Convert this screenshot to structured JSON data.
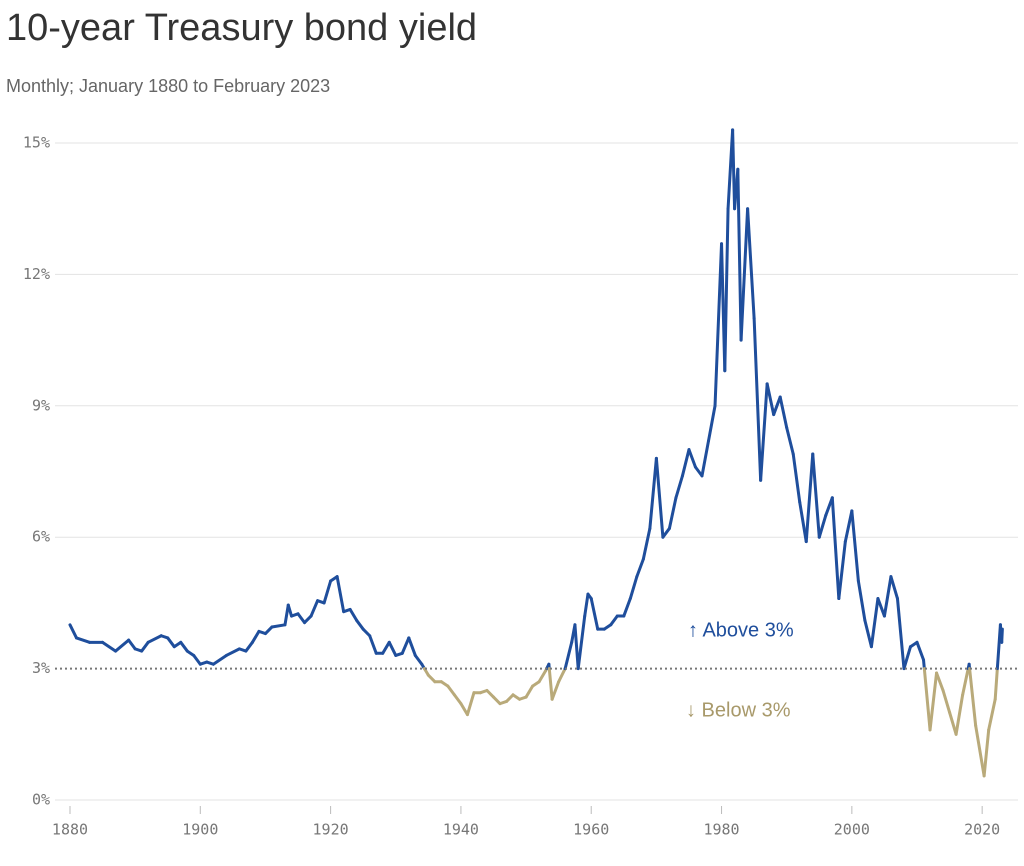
{
  "chart_data": {
    "type": "line",
    "title": "10-year Treasury bond yield",
    "subtitle": "Monthly; January 1880 to February 2023",
    "annotations": [
      "↑ Above 3%",
      "↓ Below 3%"
    ],
    "threshold": 3,
    "color": "#1f4e9c",
    "below_color": "#b9aa7a",
    "grid": true,
    "xlim": [
      1877.7,
      2025.5
    ],
    "ylim": [
      0,
      15
    ],
    "xticks": [
      1880,
      1900,
      1920,
      1940,
      1960,
      1980,
      2000,
      2020
    ],
    "yticks": [
      {
        "value": 0,
        "label": "0%"
      },
      {
        "value": 3,
        "label": "3%"
      },
      {
        "value": 6,
        "label": "6%"
      },
      {
        "value": 9,
        "label": "9%"
      },
      {
        "value": 12,
        "label": "12%"
      },
      {
        "value": 15,
        "label": "15%"
      }
    ],
    "x": [
      1880,
      1881,
      1883,
      1885,
      1887,
      1889,
      1890,
      1891,
      1892,
      1894,
      1895,
      1896,
      1897,
      1898,
      1899,
      1900,
      1901,
      1902,
      1904,
      1906,
      1907,
      1908,
      1909,
      1910,
      1911,
      1913,
      1913.5,
      1914,
      1915,
      1916,
      1917,
      1918,
      1919,
      1920,
      1921,
      1922,
      1923,
      1924,
      1925,
      1926,
      1927,
      1928,
      1929,
      1930,
      1931,
      1932,
      1933,
      1934,
      1935,
      1936,
      1937,
      1938,
      1939,
      1940,
      1941,
      1942,
      1943,
      1944,
      1945,
      1946,
      1947,
      1948,
      1949,
      1950,
      1951,
      1952,
      1953,
      1953.5,
      1954,
      1955,
      1956,
      1957,
      1957.5,
      1958,
      1959,
      1959.5,
      1960,
      1961,
      1962,
      1963,
      1964,
      1965,
      1966,
      1967,
      1968,
      1969,
      1970,
      1971,
      1972,
      1973,
      1974,
      1975,
      1976,
      1977,
      1978,
      1979,
      1980,
      1980.5,
      1981,
      1981.7,
      1982,
      1982.5,
      1983,
      1984,
      1985,
      1986,
      1987,
      1988,
      1989,
      1990,
      1991,
      1992,
      1993,
      1994,
      1995,
      1996,
      1997,
      1998,
      1999,
      2000,
      2001,
      2002,
      2003,
      2004,
      2005,
      2006,
      2007,
      2008,
      2009,
      2010,
      2011,
      2012,
      2013,
      2014,
      2015,
      2016,
      2017,
      2018,
      2019,
      2020.3,
      2021,
      2022,
      2022.8,
      2023,
      2023.1
    ],
    "values": [
      4.0,
      3.7,
      3.6,
      3.6,
      3.4,
      3.65,
      3.45,
      3.4,
      3.6,
      3.75,
      3.7,
      3.5,
      3.6,
      3.4,
      3.3,
      3.1,
      3.15,
      3.1,
      3.3,
      3.45,
      3.4,
      3.6,
      3.85,
      3.8,
      3.95,
      4.0,
      4.45,
      4.2,
      4.25,
      4.05,
      4.2,
      4.55,
      4.5,
      5.0,
      5.1,
      4.3,
      4.35,
      4.1,
      3.9,
      3.75,
      3.35,
      3.35,
      3.6,
      3.3,
      3.35,
      3.7,
      3.3,
      3.1,
      2.85,
      2.7,
      2.7,
      2.6,
      2.4,
      2.2,
      1.95,
      2.45,
      2.45,
      2.5,
      2.35,
      2.2,
      2.25,
      2.4,
      2.3,
      2.35,
      2.6,
      2.7,
      2.95,
      3.1,
      2.3,
      2.7,
      3.0,
      3.6,
      4.0,
      3.0,
      4.2,
      4.7,
      4.6,
      3.9,
      3.9,
      4.0,
      4.2,
      4.2,
      4.6,
      5.1,
      5.5,
      6.2,
      7.8,
      6.0,
      6.2,
      6.9,
      7.4,
      8.0,
      7.6,
      7.4,
      8.2,
      9.0,
      12.7,
      9.8,
      13.5,
      15.3,
      13.5,
      14.4,
      10.5,
      13.5,
      11.0,
      7.3,
      9.5,
      8.8,
      9.2,
      8.5,
      7.9,
      6.8,
      5.9,
      7.9,
      6.0,
      6.5,
      6.9,
      4.6,
      5.9,
      6.6,
      5.0,
      4.1,
      3.5,
      4.6,
      4.2,
      5.1,
      4.6,
      3.0,
      3.5,
      3.6,
      3.2,
      1.6,
      2.9,
      2.5,
      2.0,
      1.5,
      2.4,
      3.1,
      1.7,
      0.55,
      1.6,
      2.3,
      4.0,
      3.6,
      3.9
    ]
  }
}
